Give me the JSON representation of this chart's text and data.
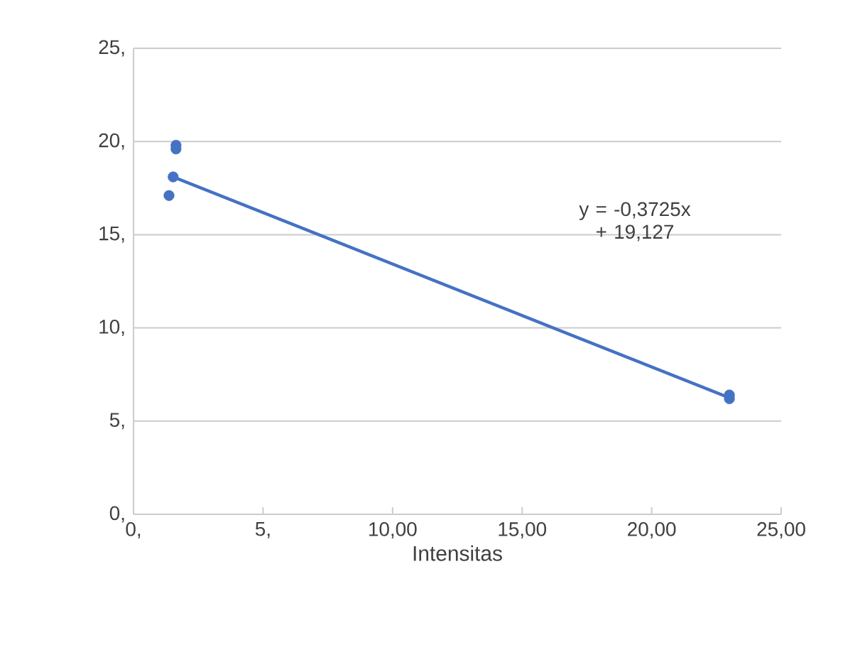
{
  "chart_data": {
    "type": "scatter",
    "xlabel": "Intensitas",
    "xlim": [
      0,
      25
    ],
    "xticks": [
      {
        "value": 0,
        "label": "0,"
      },
      {
        "value": 5,
        "label": "5,"
      },
      {
        "value": 10,
        "label": "10,00"
      },
      {
        "value": 15,
        "label": "15,00"
      },
      {
        "value": 20,
        "label": "20,00"
      },
      {
        "value": 25,
        "label": "25,00"
      }
    ],
    "ylim": [
      0,
      25
    ],
    "yticks": [
      {
        "value": 0,
        "label": "0,"
      },
      {
        "value": 5,
        "label": "5,"
      },
      {
        "value": 10,
        "label": "10,"
      },
      {
        "value": 15,
        "label": "15,"
      },
      {
        "value": 20,
        "label": "20,"
      },
      {
        "value": 25,
        "label": "25,"
      }
    ],
    "grid": "y",
    "series": [
      {
        "marker": "circle",
        "color": "#4472c4",
        "x": [
          1.64,
          1.64,
          1.53,
          1.37,
          23.0,
          23.0
        ],
        "values": [
          19.8,
          19.6,
          18.1,
          17.1,
          6.4,
          6.2
        ]
      },
      {
        "type": "line",
        "marker": "none",
        "line_style": "solid",
        "color": "#4472c4",
        "x": [
          1.53,
          23.0
        ],
        "values": [
          18.1,
          6.25
        ]
      }
    ],
    "annotations": [
      "y = -0,3725x + 19,127"
    ]
  }
}
